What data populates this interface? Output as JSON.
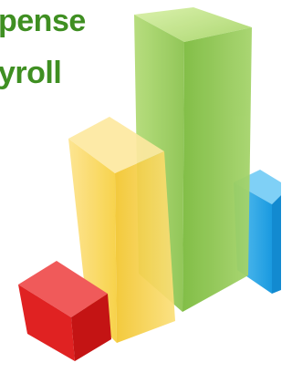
{
  "lines": [
    "pense",
    "yroll"
  ]
}
